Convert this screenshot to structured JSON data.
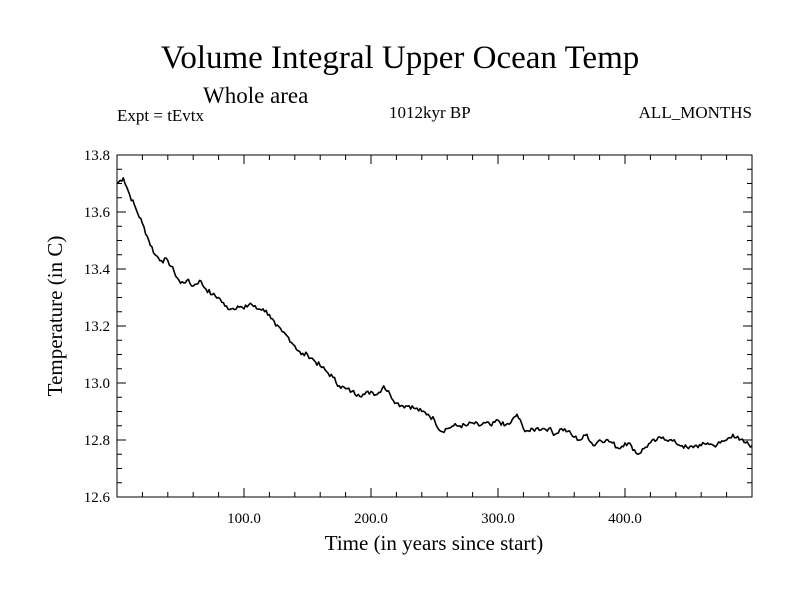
{
  "chart_data": {
    "type": "line",
    "title": "Volume Integral Upper Ocean Temp",
    "subtitle": "Whole area",
    "left_label": "Expt = tEvtx",
    "center_label": "1012kyr BP",
    "right_label": "ALL_MONTHS",
    "xlabel": "Time (in years since start)",
    "ylabel": "Temperature (in C)",
    "xlim": [
      0,
      500
    ],
    "ylim": [
      12.6,
      13.8
    ],
    "x_ticks": [
      100,
      200,
      300,
      400
    ],
    "x_tick_labels": [
      "100.0",
      "200.0",
      "300.0",
      "400.0"
    ],
    "y_ticks": [
      12.6,
      12.8,
      13.0,
      13.2,
      13.4,
      13.6,
      13.8
    ],
    "y_tick_labels": [
      "12.6",
      "12.8",
      "13.0",
      "13.2",
      "13.4",
      "13.6",
      "13.8"
    ],
    "grid": false,
    "series": [
      {
        "name": "Temperature",
        "x": [
          0,
          5,
          10,
          15,
          20,
          25,
          30,
          35,
          40,
          45,
          50,
          55,
          60,
          65,
          70,
          75,
          80,
          85,
          90,
          95,
          100,
          105,
          110,
          115,
          120,
          125,
          130,
          135,
          140,
          145,
          150,
          155,
          160,
          165,
          170,
          175,
          180,
          185,
          190,
          195,
          200,
          205,
          210,
          215,
          220,
          225,
          230,
          235,
          240,
          245,
          250,
          255,
          260,
          265,
          270,
          275,
          280,
          285,
          290,
          295,
          300,
          305,
          310,
          315,
          320,
          325,
          330,
          335,
          340,
          345,
          350,
          355,
          360,
          365,
          370,
          375,
          380,
          385,
          390,
          395,
          400,
          405,
          410,
          415,
          420,
          425,
          430,
          435,
          440,
          445,
          450,
          455,
          460,
          465,
          470,
          475,
          480,
          485,
          490,
          495,
          500
        ],
        "values": [
          13.7,
          13.72,
          13.66,
          13.61,
          13.56,
          13.5,
          13.45,
          13.43,
          13.43,
          13.39,
          13.35,
          13.36,
          13.34,
          13.36,
          13.33,
          13.31,
          13.3,
          13.27,
          13.26,
          13.27,
          13.26,
          13.28,
          13.26,
          13.26,
          13.24,
          13.2,
          13.18,
          13.16,
          13.13,
          13.1,
          13.1,
          13.08,
          13.06,
          13.04,
          13.02,
          12.99,
          12.98,
          12.97,
          12.96,
          12.96,
          12.97,
          12.96,
          12.99,
          12.96,
          12.93,
          12.92,
          12.92,
          12.91,
          12.9,
          12.89,
          12.87,
          12.83,
          12.84,
          12.85,
          12.85,
          12.85,
          12.86,
          12.85,
          12.86,
          12.85,
          12.87,
          12.85,
          12.86,
          12.89,
          12.84,
          12.83,
          12.84,
          12.84,
          12.84,
          12.82,
          12.84,
          12.83,
          12.81,
          12.8,
          12.82,
          12.78,
          12.8,
          12.8,
          12.79,
          12.77,
          12.79,
          12.78,
          12.75,
          12.77,
          12.79,
          12.8,
          12.81,
          12.8,
          12.79,
          12.78,
          12.77,
          12.78,
          12.78,
          12.79,
          12.78,
          12.79,
          12.8,
          12.82,
          12.8,
          12.79,
          12.78
        ]
      }
    ]
  }
}
